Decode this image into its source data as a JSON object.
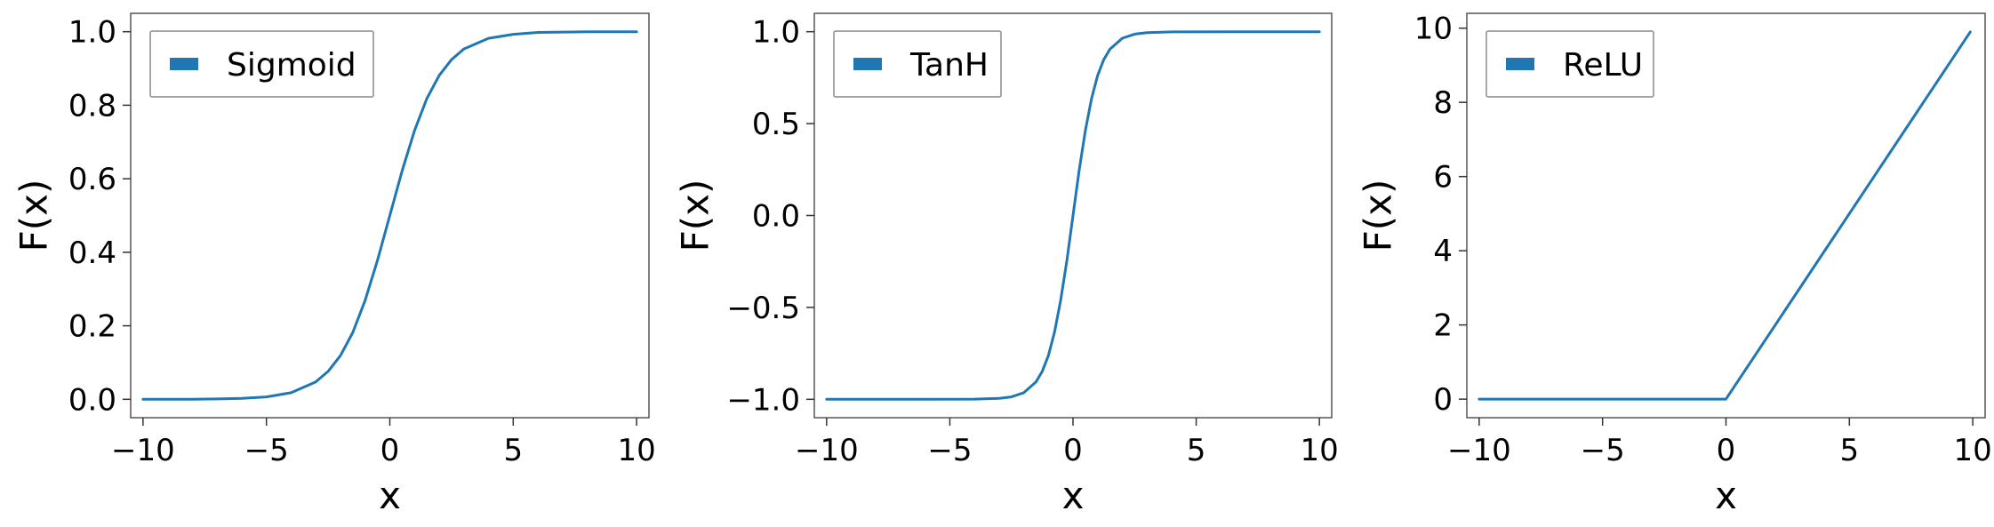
{
  "chart_data": [
    {
      "type": "line",
      "xlabel": "x",
      "ylabel": "F(x)",
      "xlim": [
        -10.5,
        10.5
      ],
      "ylim": [
        -0.05,
        1.05
      ],
      "xticks": [
        -10,
        -5,
        0,
        5,
        10
      ],
      "yticks": [
        0.0,
        0.2,
        0.4,
        0.6,
        0.8,
        1.0
      ],
      "xtick_labels": [
        "−10",
        "−5",
        "0",
        "5",
        "10"
      ],
      "ytick_labels": [
        "0.0",
        "0.2",
        "0.4",
        "0.6",
        "0.8",
        "1.0"
      ],
      "grid": false,
      "legend": "upper-left",
      "series": [
        {
          "name": "Sigmoid",
          "color": "#1f77b4",
          "x": [
            -10,
            -9,
            -8,
            -7,
            -6,
            -5,
            -4,
            -3,
            -2.5,
            -2,
            -1.5,
            -1,
            -0.5,
            0,
            0.5,
            1,
            1.5,
            2,
            2.5,
            3,
            4,
            5,
            6,
            7,
            8,
            9,
            10
          ],
          "y": [
            4.54e-05,
            0.000123,
            0.000335,
            0.000911,
            0.00247,
            0.00669,
            0.018,
            0.0474,
            0.0759,
            0.119,
            0.182,
            0.269,
            0.378,
            0.5,
            0.622,
            0.731,
            0.818,
            0.881,
            0.924,
            0.953,
            0.982,
            0.993,
            0.998,
            0.999,
            1.0,
            1.0,
            1.0
          ]
        }
      ]
    },
    {
      "type": "line",
      "xlabel": "x",
      "ylabel": "F(x)",
      "xlim": [
        -10.5,
        10.5
      ],
      "ylim": [
        -1.1,
        1.1
      ],
      "xticks": [
        -10,
        -5,
        0,
        5,
        10
      ],
      "yticks": [
        -1.0,
        -0.5,
        0.0,
        0.5,
        1.0
      ],
      "xtick_labels": [
        "−10",
        "−5",
        "0",
        "5",
        "10"
      ],
      "ytick_labels": [
        "−1.0",
        "−0.5",
        "0.0",
        "0.5",
        "1.0"
      ],
      "grid": false,
      "legend": "upper-left",
      "series": [
        {
          "name": "TanH",
          "color": "#1f77b4",
          "x": [
            -10,
            -6,
            -4,
            -3,
            -2.5,
            -2,
            -1.5,
            -1.25,
            -1,
            -0.75,
            -0.5,
            -0.25,
            0,
            0.25,
            0.5,
            0.75,
            1,
            1.25,
            1.5,
            2,
            2.5,
            3,
            4,
            6,
            10
          ],
          "y": [
            -1.0,
            -1.0,
            -0.999,
            -0.995,
            -0.987,
            -0.964,
            -0.905,
            -0.848,
            -0.762,
            -0.635,
            -0.462,
            -0.245,
            0.0,
            0.245,
            0.462,
            0.635,
            0.762,
            0.848,
            0.905,
            0.964,
            0.987,
            0.995,
            0.999,
            1.0,
            1.0
          ]
        }
      ]
    },
    {
      "type": "line",
      "xlabel": "x",
      "ylabel": "F(x)",
      "xlim": [
        -10.5,
        10.5
      ],
      "ylim": [
        -0.5,
        10.4
      ],
      "xticks": [
        -10,
        -5,
        0,
        5,
        10
      ],
      "yticks": [
        0,
        2,
        4,
        6,
        8,
        10
      ],
      "xtick_labels": [
        "−10",
        "−5",
        "0",
        "5",
        "10"
      ],
      "ytick_labels": [
        "0",
        "2",
        "4",
        "6",
        "8",
        "10"
      ],
      "grid": false,
      "legend": "upper-left",
      "series": [
        {
          "name": "ReLU",
          "color": "#1f77b4",
          "x": [
            -10,
            0,
            9.9
          ],
          "y": [
            0,
            0,
            9.9
          ]
        }
      ]
    }
  ]
}
